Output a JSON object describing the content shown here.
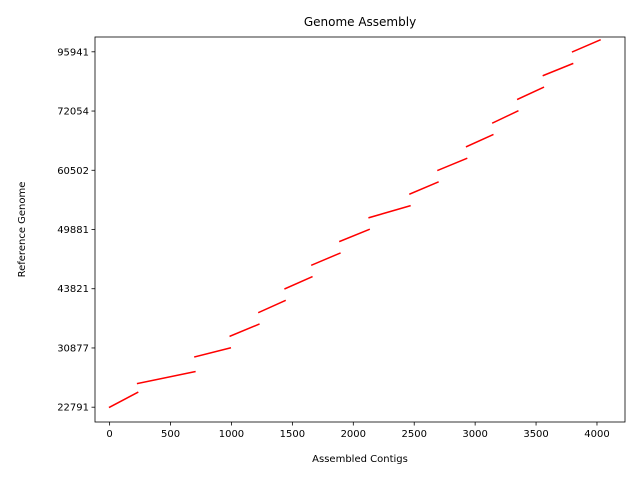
{
  "chart_data": {
    "type": "line",
    "title": "Genome Assembly",
    "xlabel": "Assembled Contigs",
    "ylabel": "Reference Genome",
    "xlim": [
      -120,
      4230
    ],
    "xticks": [
      0,
      500,
      1000,
      1500,
      2000,
      2500,
      3000,
      3500,
      4000
    ],
    "ytick_labels": [
      "22791",
      "30877",
      "43821",
      "49881",
      "60502",
      "72054",
      "95941"
    ],
    "ylim": [
      -0.25,
      6.25
    ],
    "y_axis_note": "tick labels mark segment boundaries at evenly spaced positions",
    "grid": false,
    "line_color": "#ff0000",
    "segments": [
      {
        "x": [
          0,
          230
        ],
        "y": [
          0.0,
          0.25
        ]
      },
      {
        "x": [
          230,
          700
        ],
        "y": [
          0.4,
          0.6
        ]
      },
      {
        "x": [
          700,
          990
        ],
        "y": [
          0.85,
          1.0
        ]
      },
      {
        "x": [
          990,
          1225
        ],
        "y": [
          1.2,
          1.4
        ]
      },
      {
        "x": [
          1225,
          1440
        ],
        "y": [
          1.6,
          1.8
        ]
      },
      {
        "x": [
          1440,
          1660
        ],
        "y": [
          2.0,
          2.2
        ]
      },
      {
        "x": [
          1660,
          1890
        ],
        "y": [
          2.4,
          2.6
        ]
      },
      {
        "x": [
          1890,
          2130
        ],
        "y": [
          2.8,
          3.0
        ]
      },
      {
        "x": [
          2130,
          2465
        ],
        "y": [
          3.2,
          3.4
        ]
      },
      {
        "x": [
          2465,
          2695
        ],
        "y": [
          3.6,
          3.8
        ]
      },
      {
        "x": [
          2695,
          2930
        ],
        "y": [
          4.0,
          4.2
        ]
      },
      {
        "x": [
          2930,
          3145
        ],
        "y": [
          4.4,
          4.6
        ]
      },
      {
        "x": [
          3145,
          3350
        ],
        "y": [
          4.8,
          5.0
        ]
      },
      {
        "x": [
          3350,
          3560
        ],
        "y": [
          5.2,
          5.4
        ]
      },
      {
        "x": [
          3560,
          3800
        ],
        "y": [
          5.6,
          5.8
        ]
      },
      {
        "x": [
          3800,
          4025
        ],
        "y": [
          6.0,
          6.2
        ]
      }
    ]
  }
}
